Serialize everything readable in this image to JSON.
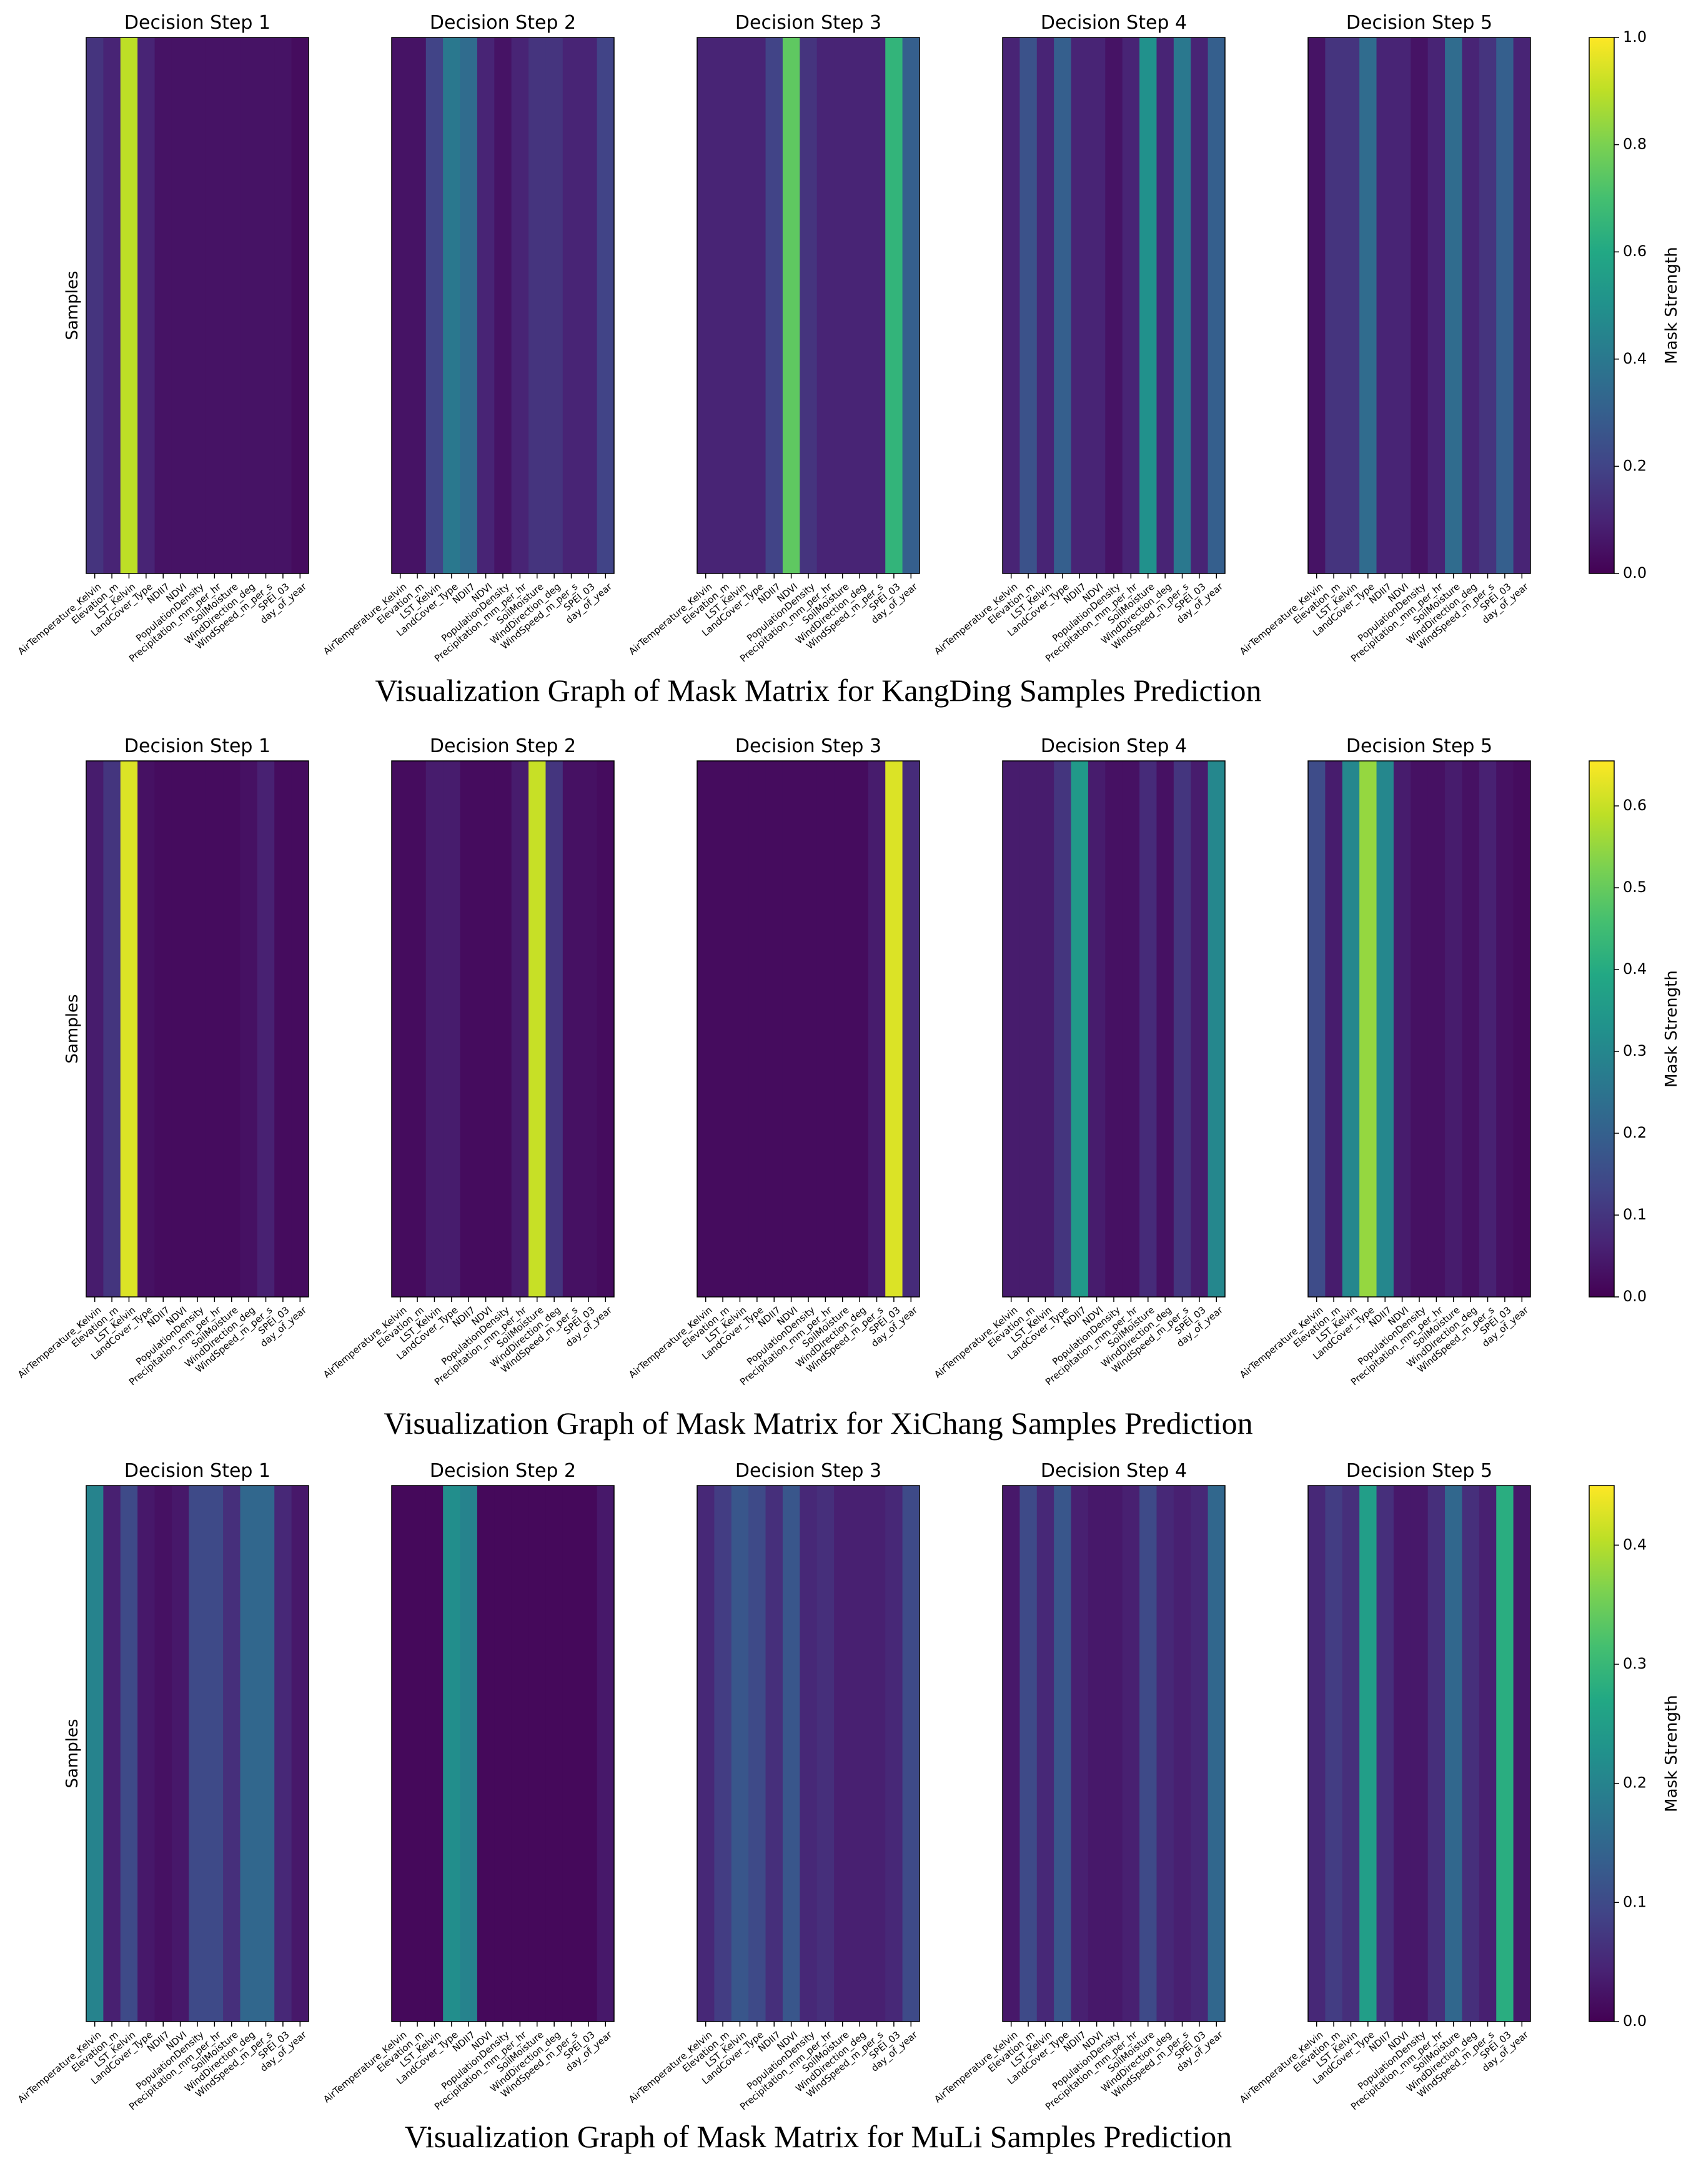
{
  "chart_data": [
    {
      "type": "heatmap",
      "title": "Visualization Graph of Mask Matrix for KangDing Samples Prediction",
      "ylabel": "Samples",
      "colorbar_label": "Mask Strength",
      "colormap": "viridis",
      "categories": [
        "AirTemperature_Kelvin",
        "Elevation_m",
        "LST_Kelvin",
        "LandCover_Type",
        "NDII7",
        "NDVI",
        "PopulationDensity",
        "Precipitation_mm_per_hr",
        "SoilMoisture",
        "WindDirection_deg",
        "WindSpeed_m_per_s",
        "SPEI_03",
        "day_of_year"
      ],
      "clim": [
        0,
        1.0
      ],
      "cticks": [
        {
          "value": 0,
          "label": "0.0"
        },
        0.2,
        0.4,
        0.6,
        0.8,
        {
          "value": 1,
          "label": "1.0"
        }
      ],
      "steps": [
        {
          "title": "Decision Step 1",
          "values": [
            0.15,
            0.1,
            0.9,
            0.1,
            0.05,
            0.05,
            0.05,
            0.05,
            0.05,
            0.05,
            0.05,
            0.05,
            0.03
          ]
        },
        {
          "title": "Decision Step 2",
          "values": [
            0.05,
            0.05,
            0.2,
            0.4,
            0.35,
            0.1,
            0.05,
            0.1,
            0.15,
            0.15,
            0.1,
            0.1,
            0.2
          ]
        },
        {
          "title": "Decision Step 3",
          "values": [
            0.1,
            0.1,
            0.1,
            0.1,
            0.2,
            0.75,
            0.15,
            0.1,
            0.1,
            0.1,
            0.1,
            0.65,
            0.3
          ]
        },
        {
          "title": "Decision Step 4",
          "values": [
            0.1,
            0.25,
            0.1,
            0.3,
            0.1,
            0.1,
            0.05,
            0.1,
            0.5,
            0.1,
            0.4,
            0.1,
            0.3
          ]
        },
        {
          "title": "Decision Step 5",
          "values": [
            0.05,
            0.15,
            0.15,
            0.35,
            0.1,
            0.1,
            0.05,
            0.1,
            0.35,
            0.1,
            0.15,
            0.3,
            0.1
          ]
        }
      ]
    },
    {
      "type": "heatmap",
      "title": "Visualization Graph of Mask Matrix for XiChang Samples Prediction",
      "ylabel": "Samples",
      "colorbar_label": "Mask Strength",
      "colormap": "viridis",
      "categories": [
        "AirTemperature_Kelvin",
        "Elevation_m",
        "LST_Kelvin",
        "LandCover_Type",
        "NDII7",
        "NDVI",
        "PopulationDensity",
        "Precipitation_mm_per_hr",
        "SoilMoisture",
        "WindDirection_deg",
        "WindSpeed_m_per_s",
        "SPEI_03",
        "day_of_year"
      ],
      "clim": [
        0,
        0.655
      ],
      "cticks": [
        {
          "value": 0,
          "label": "0.0"
        },
        0.1,
        0.2,
        0.3,
        0.4,
        0.5,
        0.6
      ],
      "steps": [
        {
          "title": "Decision Step 1",
          "values": [
            0.05,
            0.1,
            0.62,
            0.03,
            0.02,
            0.02,
            0.02,
            0.02,
            0.02,
            0.03,
            0.06,
            0.02,
            0.02
          ]
        },
        {
          "title": "Decision Step 2",
          "values": [
            0.02,
            0.02,
            0.05,
            0.05,
            0.02,
            0.02,
            0.02,
            0.05,
            0.6,
            0.1,
            0.03,
            0.03,
            0.02
          ]
        },
        {
          "title": "Decision Step 3",
          "values": [
            0.02,
            0.02,
            0.02,
            0.02,
            0.02,
            0.02,
            0.02,
            0.02,
            0.02,
            0.02,
            0.05,
            0.62,
            0.08
          ]
        },
        {
          "title": "Decision Step 4",
          "values": [
            0.05,
            0.05,
            0.05,
            0.1,
            0.35,
            0.05,
            0.03,
            0.03,
            0.08,
            0.03,
            0.1,
            0.05,
            0.3
          ]
        },
        {
          "title": "Decision Step 5",
          "values": [
            0.15,
            0.05,
            0.3,
            0.55,
            0.3,
            0.05,
            0.03,
            0.03,
            0.05,
            0.03,
            0.06,
            0.03,
            0.02
          ]
        }
      ]
    },
    {
      "type": "heatmap",
      "title": "Visualization Graph of Mask Matrix for MuLi Samples Prediction",
      "ylabel": "Samples",
      "colorbar_label": "Mask Strength",
      "colormap": "viridis",
      "categories": [
        "AirTemperature_Kelvin",
        "Elevation_m",
        "LST_Kelvin",
        "LandCover_Type",
        "NDII7",
        "NDVI",
        "PopulationDensity",
        "Precipitation_mm_per_hr",
        "SoilMoisture",
        "WindDirection_deg",
        "WindSpeed_m_per_s",
        "SPEI_03",
        "day_of_year"
      ],
      "clim": [
        0,
        0.45
      ],
      "cticks": [
        {
          "value": 0,
          "label": "0.0"
        },
        0.1,
        0.2,
        0.3,
        0.4
      ],
      "steps": [
        {
          "title": "Decision Step 1",
          "values": [
            0.2,
            0.04,
            0.1,
            0.03,
            0.02,
            0.03,
            0.1,
            0.1,
            0.06,
            0.15,
            0.15,
            0.05,
            0.03
          ]
        },
        {
          "title": "Decision Step 2",
          "values": [
            0.01,
            0.01,
            0.01,
            0.22,
            0.2,
            0.01,
            0.01,
            0.01,
            0.01,
            0.01,
            0.01,
            0.01,
            0.03
          ]
        },
        {
          "title": "Decision Step 3",
          "values": [
            0.05,
            0.08,
            0.12,
            0.1,
            0.06,
            0.12,
            0.05,
            0.06,
            0.04,
            0.04,
            0.04,
            0.05,
            0.1
          ]
        },
        {
          "title": "Decision Step 4",
          "values": [
            0.03,
            0.1,
            0.05,
            0.12,
            0.04,
            0.03,
            0.03,
            0.04,
            0.1,
            0.05,
            0.04,
            0.05,
            0.15
          ]
        },
        {
          "title": "Decision Step 5",
          "values": [
            0.05,
            0.08,
            0.06,
            0.25,
            0.06,
            0.03,
            0.03,
            0.06,
            0.15,
            0.06,
            0.04,
            0.28,
            0.03
          ]
        }
      ]
    }
  ]
}
